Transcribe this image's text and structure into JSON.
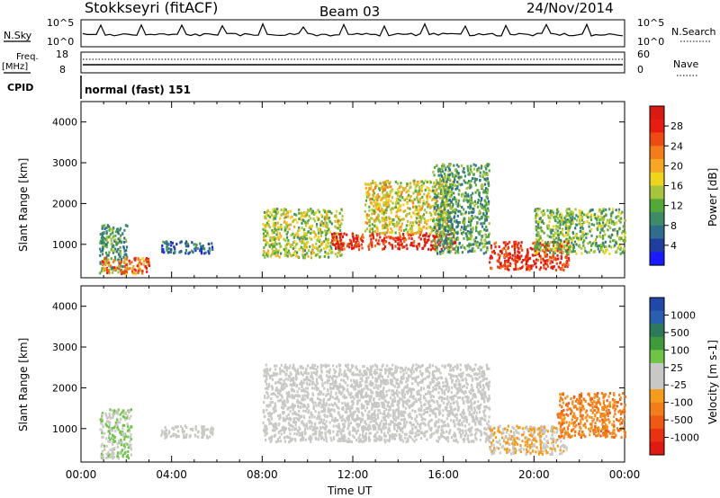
{
  "header": {
    "station": "Stokkseyri (fitACF)",
    "beam": "Beam 03",
    "date": "24/Nov/2014"
  },
  "top_panels": {
    "nsky_label": "N.Sky",
    "nsky_ticks": [
      "10^5",
      "10^0"
    ],
    "nsearch_label": "N.Search",
    "nsearch_ticks": [
      "10^5",
      "10^0"
    ],
    "freq_label_1": "Freq.",
    "freq_label_2": "[MHz]",
    "freq_ticks": [
      "18",
      "8"
    ],
    "nave_label": "Nave",
    "nave_ticks": [
      "60",
      "0"
    ],
    "cpid_label": "CPID",
    "cpid_text": "normal (fast) 151"
  },
  "colors": {
    "power_scale": [
      "#1a1aff",
      "#1f3f9e",
      "#2e6d8c",
      "#3d8c67",
      "#54a83a",
      "#a6c43c",
      "#f0d31c",
      "#f5a623",
      "#f27d1a",
      "#ef4a14",
      "#e81c12",
      "#d81a12"
    ],
    "velocity_scale": [
      "#2147a8",
      "#2a5fb0",
      "#2c7a5a",
      "#3f9a3c",
      "#6fc447",
      "#c8c8c4",
      "#c8c8c4",
      "#f59b1e",
      "#f27d1a",
      "#ee5a14",
      "#e83212",
      "#e01a10"
    ]
  },
  "chart_data": [
    {
      "type": "heatmap",
      "name": "power",
      "ylabel": "Slant Range [km]",
      "yticks": [
        "4000",
        "3000",
        "2000",
        "1000"
      ],
      "ylim": [
        180,
        4500
      ],
      "xticks": [
        "00:00",
        "04:00",
        "08:00",
        "12:00",
        "16:00",
        "20:00",
        "00:00"
      ],
      "xlim": [
        0,
        24
      ],
      "colorbar_label": "Power [dB]",
      "colorbar_ticks": [
        "28",
        "24",
        "20",
        "16",
        "12",
        "8",
        "4"
      ],
      "clim": [
        0,
        30
      ],
      "regions": [
        {
          "t0": 0.8,
          "t1": 2.0,
          "r0": 300,
          "r1": 1500,
          "level": 10
        },
        {
          "t0": 0.9,
          "t1": 3.0,
          "r0": 300,
          "r1": 700,
          "level": 22
        },
        {
          "t0": 3.5,
          "t1": 5.8,
          "r0": 800,
          "r1": 1100,
          "level": 6
        },
        {
          "t0": 8.0,
          "t1": 11.5,
          "r0": 700,
          "r1": 1900,
          "level": 14
        },
        {
          "t0": 11.0,
          "t1": 16.5,
          "r0": 900,
          "r1": 1300,
          "level": 26
        },
        {
          "t0": 12.5,
          "t1": 16.5,
          "r0": 1300,
          "r1": 2600,
          "level": 16
        },
        {
          "t0": 15.5,
          "t1": 18.0,
          "r0": 800,
          "r1": 3000,
          "level": 10
        },
        {
          "t0": 18.0,
          "t1": 21.5,
          "r0": 400,
          "r1": 1100,
          "level": 26
        },
        {
          "t0": 20.0,
          "t1": 24.0,
          "r0": 800,
          "r1": 1900,
          "level": 12
        }
      ]
    },
    {
      "type": "heatmap",
      "name": "velocity",
      "ylabel": "Slant Range [km]",
      "yticks": [
        "4000",
        "3000",
        "2000",
        "1000"
      ],
      "ylim": [
        180,
        4500
      ],
      "xticks": [
        "00:00",
        "04:00",
        "08:00",
        "12:00",
        "16:00",
        "20:00",
        "00:00"
      ],
      "xlim": [
        0,
        24
      ],
      "xlabel": "Time UT",
      "colorbar_label": "Velocity [m s-1]",
      "colorbar_ticks": [
        "1000",
        "500",
        "100",
        "25",
        "-25",
        "-100",
        "-500",
        "-1000"
      ],
      "clim": [
        -1000,
        1000
      ],
      "regions": [
        {
          "t0": 0.8,
          "t1": 2.2,
          "r0": 300,
          "r1": 1500,
          "v": 150
        },
        {
          "t0": 3.5,
          "t1": 5.8,
          "r0": 800,
          "r1": 1100,
          "v": 0
        },
        {
          "t0": 8.0,
          "t1": 18.0,
          "r0": 700,
          "r1": 2600,
          "v": 0
        },
        {
          "t0": 18.0,
          "t1": 21.5,
          "r0": 400,
          "r1": 1100,
          "v": -150
        },
        {
          "t0": 21.0,
          "t1": 24.0,
          "r0": 800,
          "r1": 1900,
          "v": -400
        }
      ]
    }
  ]
}
